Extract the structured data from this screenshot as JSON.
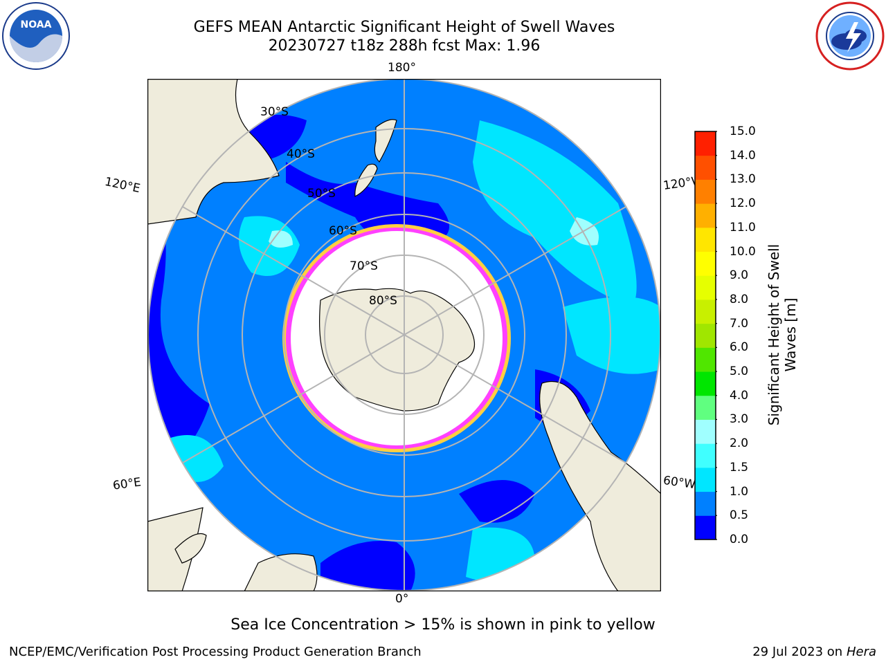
{
  "title": {
    "line1": "GEFS MEAN Antarctic Significant Height of Swell Waves",
    "line2": "20230727 t18z 288h fcst   Max: 1.96"
  },
  "logos": {
    "left": {
      "icon": "noaa-logo",
      "text": "NOAA"
    },
    "right": {
      "icon": "national-weather-service-logo"
    }
  },
  "map": {
    "projection": "south-polar-stereographic",
    "colors": {
      "land": "#efecdc",
      "sea_ice": "#ffffff",
      "grid": "#b4b4b4",
      "ice_edge": [
        "#ff40ff",
        "#ffcf40"
      ]
    },
    "lon_labels": {
      "top": "180°",
      "bottom": "0°",
      "left_upper": "120°E",
      "left_lower": "60°E",
      "right_upper": "120°W",
      "right_lower": "60°W"
    },
    "lat_labels": [
      "30°S",
      "40°S",
      "50°S",
      "60°S",
      "70°S",
      "80°S"
    ]
  },
  "colorbar": {
    "label_line1": "Significant Height of Swell",
    "label_line2": "Waves [m]",
    "ticks": [
      "15.0",
      "14.0",
      "13.0",
      "12.0",
      "11.0",
      "10.0",
      "9.0",
      "8.0",
      "7.0",
      "6.0",
      "5.0",
      "4.0",
      "3.0",
      "2.0",
      "1.5",
      "1.0",
      "0.5",
      "0.0"
    ],
    "colors_bottom_to_top": [
      "#0000ff",
      "#0080ff",
      "#00e6ff",
      "#40ffff",
      "#a0ffff",
      "#60ff80",
      "#00e600",
      "#50e600",
      "#a0e600",
      "#c8f000",
      "#e6ff00",
      "#ffff00",
      "#ffe600",
      "#ffb000",
      "#ff8000",
      "#ff5000",
      "#ff2000"
    ]
  },
  "caption": "Sea Ice Concentration > 15% is shown in pink to yellow",
  "footer": {
    "left": "NCEP/EMC/Verification Post Processing Product Generation Branch",
    "right_date": "29 Jul 2023 on",
    "right_host": "Hera"
  }
}
